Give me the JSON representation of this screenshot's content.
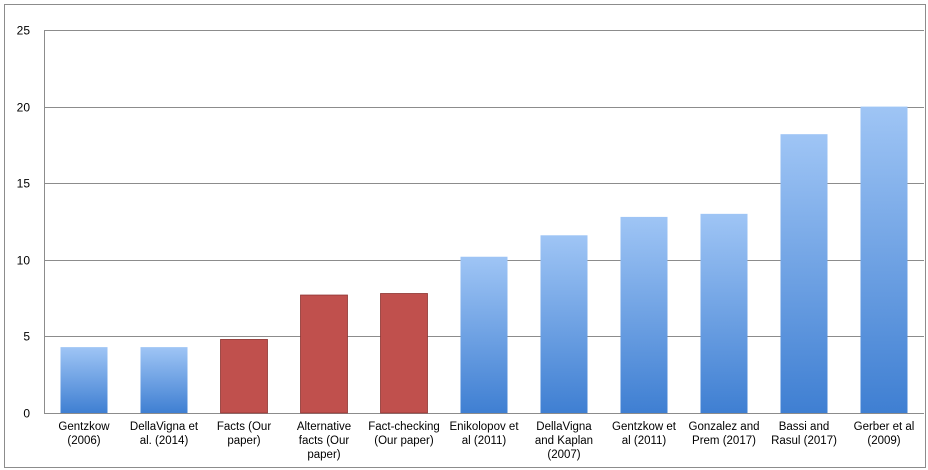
{
  "chart_data": {
    "type": "bar",
    "title": "",
    "xlabel": "",
    "ylabel": "",
    "ylim": [
      0,
      25
    ],
    "yticks": [
      0,
      5,
      10,
      15,
      20,
      25
    ],
    "grid": "horizontal",
    "legend": "none",
    "categories": [
      [
        "Gentzkow",
        "(2006)"
      ],
      [
        "DellaVigna et",
        "al. (2014)"
      ],
      [
        "Facts  (Our",
        "paper)"
      ],
      [
        "Alternative",
        "facts  (Our",
        "paper)"
      ],
      [
        "Fact-checking",
        "(Our paper)"
      ],
      [
        "Enikolopov et",
        "al (2011)"
      ],
      [
        "DellaVigna",
        "and Kaplan",
        "(2007)"
      ],
      [
        "Gentzkow et",
        "al (2011)"
      ],
      [
        "Gonzalez and",
        "Prem (2017)"
      ],
      [
        "Bassi and",
        "Rasul (2017)"
      ],
      [
        "Gerber et al",
        "(2009)"
      ]
    ],
    "values": [
      4.3,
      4.3,
      4.8,
      7.7,
      7.8,
      10.2,
      11.6,
      12.8,
      13.0,
      18.2,
      20.0
    ],
    "bar_kind": [
      "other",
      "other",
      "our",
      "our",
      "our",
      "other",
      "other",
      "other",
      "other",
      "other",
      "other"
    ],
    "colors": {
      "other_top": "#9fc5f5",
      "other_bottom": "#3f7fd2",
      "our": "#c0504d",
      "our_edge": "#8e3532",
      "grid": "#8c8c8c"
    }
  }
}
